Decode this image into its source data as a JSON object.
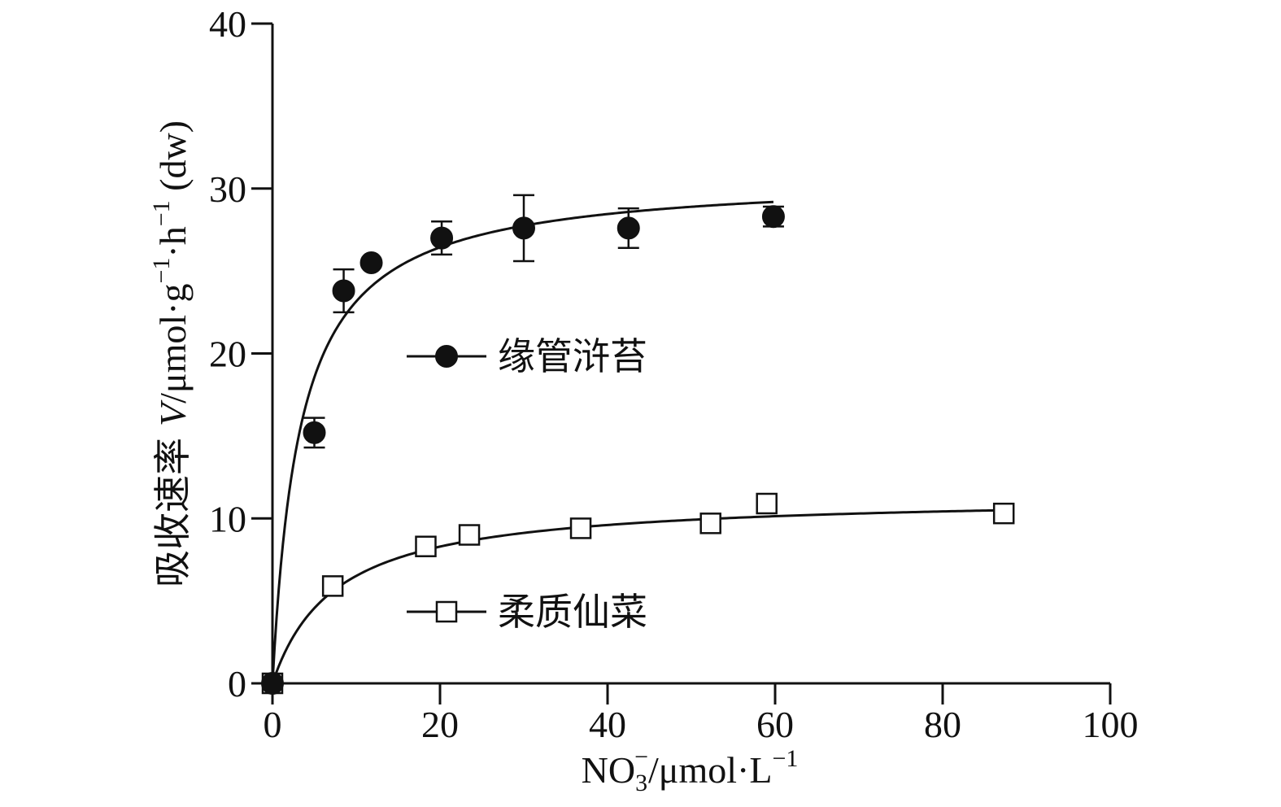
{
  "chart_data": {
    "type": "scatter",
    "xlabel": {
      "main": "NO",
      "sub": "3",
      "sup": "−",
      "rest": "/μmol·L",
      "rest_sup": "−1"
    },
    "ylabel": {
      "cn": "吸收速率",
      "var": "V",
      "unit": "/μmol·g",
      "sup1": "−1",
      "mid": "·h",
      "sup2": "−1",
      "tail": " (dw)"
    },
    "xlim": [
      0,
      100
    ],
    "ylim": [
      0,
      40
    ],
    "x_ticks": [
      0,
      20,
      40,
      60,
      80,
      100
    ],
    "y_ticks": [
      0,
      10,
      20,
      30,
      40
    ],
    "x_tick_labels": [
      "0",
      "20",
      "40",
      "60",
      "80",
      "100"
    ],
    "y_tick_labels": [
      "0",
      "10",
      "20",
      "30",
      "40"
    ],
    "grid": false,
    "legend_position": "center",
    "colors": {
      "line": "#111111",
      "marker_fill_1": "#111111",
      "marker_fill_2": "#ffffff"
    },
    "series": [
      {
        "name": "缘管浒苔",
        "marker": "filled-circle",
        "points": [
          {
            "x": 0,
            "y": 0,
            "err": 0
          },
          {
            "x": 5,
            "y": 15.2,
            "err": 0.9
          },
          {
            "x": 8.5,
            "y": 23.8,
            "err": 1.3
          },
          {
            "x": 11.8,
            "y": 25.5,
            "err": 0
          },
          {
            "x": 20.2,
            "y": 27.0,
            "err": 1.0
          },
          {
            "x": 30.0,
            "y": 27.6,
            "err": 2.0
          },
          {
            "x": 42.5,
            "y": 27.6,
            "err": 1.2
          },
          {
            "x": 59.8,
            "y": 28.3,
            "err": 0.6
          }
        ],
        "fit": {
          "model": "michaelis-menten",
          "vmax": 30.8,
          "km": 3.3,
          "x_max": 59.8
        }
      },
      {
        "name": "柔质仙菜",
        "marker": "open-square",
        "points": [
          {
            "x": 0,
            "y": 0,
            "err": 0
          },
          {
            "x": 7.2,
            "y": 5.9,
            "err": 0.5
          },
          {
            "x": 18.3,
            "y": 8.3,
            "err": 0
          },
          {
            "x": 23.5,
            "y": 9.0,
            "err": 0
          },
          {
            "x": 36.8,
            "y": 9.4,
            "err": 0.5
          },
          {
            "x": 52.3,
            "y": 9.7,
            "err": 0.5
          },
          {
            "x": 59.0,
            "y": 10.9,
            "err": 0
          },
          {
            "x": 87.3,
            "y": 10.3,
            "err": 0
          }
        ],
        "fit": {
          "model": "michaelis-menten",
          "vmax": 11.4,
          "km": 7.5,
          "x_max": 87.3
        }
      }
    ]
  }
}
